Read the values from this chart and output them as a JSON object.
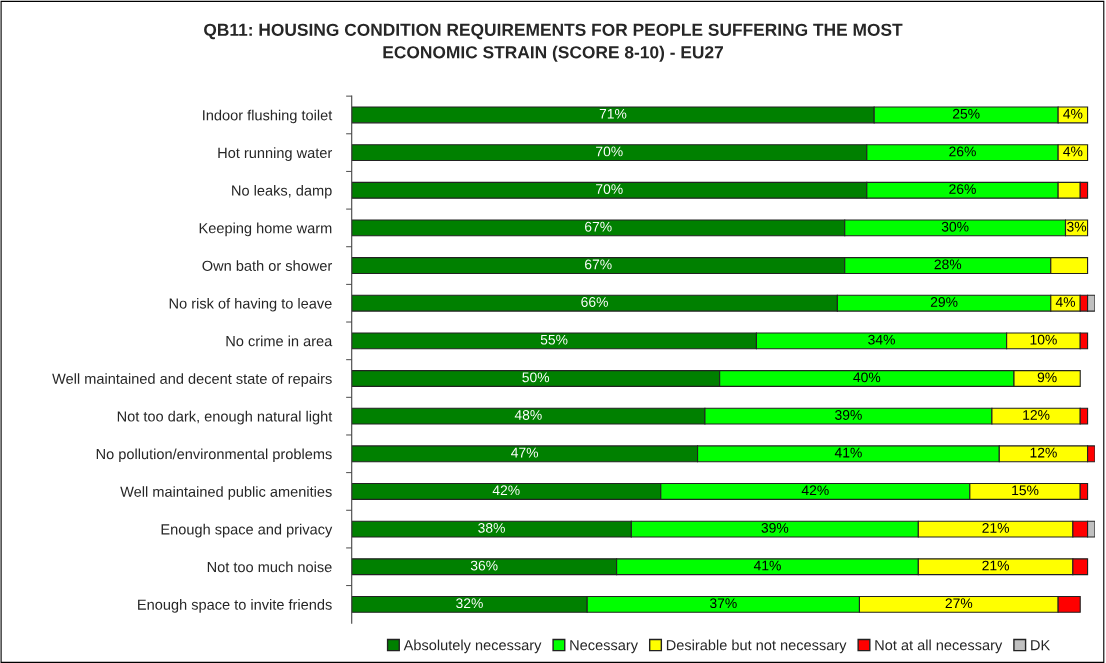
{
  "chart_data": {
    "type": "bar",
    "orientation": "horizontal",
    "stacked": true,
    "title": "QB11: HOUSING CONDITION REQUIREMENTS FOR PEOPLE SUFFERING THE MOST\nECONOMIC STRAIN (SCORE 8-10) - EU27",
    "categories": [
      "Indoor flushing toilet",
      "Hot running water",
      "No leaks, damp",
      "Keeping home warm",
      "Own bath or shower",
      "No risk of having to leave",
      "No crime in area",
      "Well maintained and decent state of repairs",
      "Not too dark, enough natural light",
      "No pollution/environmental problems",
      "Well maintained public amenities",
      "Enough space and privacy",
      "Not too much noise",
      "Enough space to invite friends"
    ],
    "series": [
      {
        "name": "Absolutely necessary",
        "color": "#008000",
        "values": [
          71,
          70,
          70,
          67,
          67,
          66,
          55,
          50,
          48,
          47,
          42,
          38,
          36,
          32
        ],
        "value_labels": [
          "71%",
          "70%",
          "70%",
          "67%",
          "67%",
          "66%",
          "55%",
          "50%",
          "48%",
          "47%",
          "42%",
          "38%",
          "36%",
          "32%"
        ]
      },
      {
        "name": "Necessary",
        "color": "#00ff00",
        "values": [
          25,
          26,
          26,
          30,
          28,
          29,
          34,
          40,
          39,
          41,
          42,
          39,
          41,
          37
        ],
        "value_labels": [
          "25%",
          "26%",
          "26%",
          "30%",
          "28%",
          "29%",
          "34%",
          "40%",
          "39%",
          "41%",
          "42%",
          "39%",
          "41%",
          "37%"
        ]
      },
      {
        "name": "Desirable but not necessary",
        "color": "#ffff00",
        "values": [
          4,
          4,
          3,
          3,
          5,
          4,
          10,
          9,
          12,
          12,
          15,
          21,
          21,
          27
        ],
        "value_labels": [
          "4%",
          "4%",
          null,
          "3%",
          null,
          "4%",
          "10%",
          "9%",
          "12%",
          "12%",
          "15%",
          "21%",
          "21%",
          "27%"
        ]
      },
      {
        "name": "Not at all necessary",
        "color": "#ff0000",
        "values": [
          null,
          null,
          1,
          null,
          null,
          1,
          1,
          null,
          1,
          1,
          1,
          2,
          2,
          3
        ],
        "value_labels": [
          null,
          null,
          null,
          null,
          null,
          null,
          null,
          null,
          null,
          null,
          null,
          null,
          null,
          null
        ]
      },
      {
        "name": "DK",
        "color": "#c0c0c0",
        "values": [
          null,
          null,
          null,
          null,
          null,
          1,
          null,
          null,
          null,
          null,
          null,
          1,
          null,
          null
        ],
        "value_labels": [
          null,
          null,
          null,
          null,
          null,
          null,
          null,
          null,
          null,
          null,
          null,
          null,
          null,
          null
        ]
      }
    ],
    "legend": "bottom"
  }
}
